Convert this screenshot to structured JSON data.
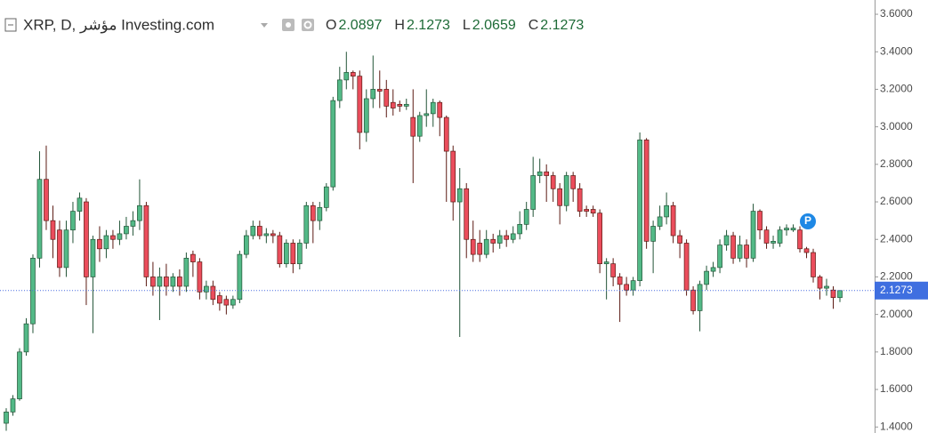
{
  "chart_data": {
    "type": "candlestick",
    "title": "XRP, D, مؤشر Investing.com",
    "header": [
      {
        "label": "O",
        "value": "2.0897"
      },
      {
        "label": "H",
        "value": "2.1273"
      },
      {
        "label": "L",
        "value": "2.0659"
      },
      {
        "label": "C",
        "value": "2.1273"
      }
    ],
    "up_color": "#53b987",
    "down_color": "#eb4d5c",
    "open": [
      1.42,
      1.48,
      1.55,
      1.8,
      1.95,
      2.3,
      2.72,
      2.5,
      2.45,
      2.25,
      2.45,
      2.55,
      2.6,
      2.2,
      2.4,
      2.35,
      2.42,
      2.4,
      2.43,
      2.47,
      2.5,
      2.58,
      2.2,
      2.15,
      2.2,
      2.15,
      2.2,
      2.15,
      2.32,
      2.28,
      2.12,
      2.15,
      2.1,
      2.08,
      2.05,
      2.08,
      2.32,
      2.42,
      2.47,
      2.42,
      2.43,
      2.42,
      2.27,
      2.38,
      2.27,
      2.38,
      2.58,
      2.5,
      2.57,
      2.68,
      3.14,
      3.25,
      3.29,
      3.27,
      2.97,
      3.15,
      3.2,
      3.2,
      3.13,
      3.12,
      3.11,
      3.05,
      2.95,
      3.06,
      3.07,
      3.13,
      3.05,
      2.87,
      2.6,
      2.67,
      2.4,
      2.38,
      2.32,
      2.4,
      2.38,
      2.42,
      2.4,
      2.43,
      2.48,
      2.56,
      2.74,
      2.76,
      2.74,
      2.67,
      2.58,
      2.74,
      2.67,
      2.56,
      2.56,
      2.54,
      2.27,
      2.27,
      2.2,
      2.16,
      2.13,
      2.18,
      2.93,
      2.39,
      2.47,
      2.52,
      2.58,
      2.42,
      2.38,
      2.13,
      2.02,
      2.16,
      2.23,
      2.25,
      2.37,
      2.42,
      2.3,
      2.37,
      2.3,
      2.55,
      2.45,
      2.38,
      2.38,
      2.45,
      2.45,
      2.45,
      2.35,
      2.33,
      2.2,
      2.14,
      2.13,
      2.0897
    ],
    "high": [
      1.5,
      1.57,
      1.82,
      1.98,
      2.32,
      2.87,
      2.9,
      2.58,
      2.5,
      2.5,
      2.6,
      2.65,
      2.62,
      2.42,
      2.47,
      2.45,
      2.45,
      2.5,
      2.52,
      2.55,
      2.72,
      2.6,
      2.28,
      2.25,
      2.27,
      2.22,
      2.24,
      2.33,
      2.34,
      2.3,
      2.18,
      2.18,
      2.12,
      2.1,
      2.1,
      2.34,
      2.45,
      2.5,
      2.5,
      2.46,
      2.45,
      2.44,
      2.4,
      2.4,
      2.4,
      2.6,
      2.6,
      2.6,
      2.7,
      3.16,
      3.32,
      3.4,
      3.3,
      3.3,
      3.2,
      3.38,
      3.3,
      3.25,
      3.2,
      3.14,
      3.15,
      3.2,
      3.08,
      3.2,
      3.15,
      3.14,
      3.06,
      2.9,
      2.78,
      2.7,
      2.5,
      2.45,
      2.45,
      2.43,
      2.45,
      2.45,
      2.47,
      2.55,
      2.6,
      2.84,
      2.83,
      2.8,
      2.76,
      2.7,
      2.76,
      2.76,
      2.7,
      2.58,
      2.58,
      2.56,
      2.3,
      2.3,
      2.22,
      2.2,
      2.2,
      2.97,
      2.94,
      2.5,
      2.58,
      2.65,
      2.6,
      2.45,
      2.4,
      2.15,
      2.18,
      2.26,
      2.28,
      2.4,
      2.45,
      2.44,
      2.42,
      2.4,
      2.59,
      2.56,
      2.47,
      2.42,
      2.47,
      2.48,
      2.48,
      2.47,
      2.36,
      2.35,
      2.21,
      2.19,
      2.15,
      2.1273
    ],
    "low": [
      1.38,
      1.46,
      1.54,
      1.78,
      1.9,
      2.25,
      2.45,
      2.3,
      2.2,
      2.2,
      2.38,
      2.5,
      2.05,
      1.9,
      2.28,
      2.3,
      2.35,
      2.37,
      2.4,
      2.42,
      2.45,
      2.15,
      2.1,
      1.97,
      2.1,
      2.12,
      2.1,
      2.12,
      2.2,
      2.08,
      2.08,
      2.05,
      2.02,
      2.0,
      2.03,
      2.06,
      2.3,
      2.4,
      2.4,
      2.38,
      2.38,
      2.25,
      2.25,
      2.22,
      2.24,
      2.35,
      2.38,
      2.45,
      2.55,
      2.66,
      3.1,
      3.2,
      3.2,
      2.88,
      2.92,
      3.1,
      3.1,
      3.05,
      3.06,
      3.08,
      3.09,
      2.7,
      2.92,
      3.0,
      3.0,
      2.95,
      2.6,
      2.5,
      1.88,
      2.3,
      2.28,
      2.28,
      2.3,
      2.33,
      2.35,
      2.36,
      2.38,
      2.4,
      2.45,
      2.52,
      2.7,
      2.6,
      2.6,
      2.48,
      2.55,
      2.6,
      2.52,
      2.52,
      2.52,
      2.22,
      2.08,
      2.15,
      1.96,
      2.1,
      2.1,
      2.15,
      2.35,
      2.22,
      2.45,
      2.48,
      2.38,
      2.3,
      2.1,
      2.0,
      1.91,
      2.13,
      2.2,
      2.22,
      2.34,
      2.27,
      2.28,
      2.25,
      2.28,
      2.4,
      2.35,
      2.35,
      2.36,
      2.42,
      2.44,
      2.33,
      2.3,
      2.17,
      2.08,
      2.1,
      2.03,
      2.0659
    ],
    "close": [
      1.48,
      1.55,
      1.8,
      1.95,
      2.3,
      2.72,
      2.5,
      2.4,
      2.25,
      2.45,
      2.55,
      2.62,
      2.2,
      2.4,
      2.35,
      2.42,
      2.4,
      2.43,
      2.47,
      2.5,
      2.58,
      2.2,
      2.15,
      2.2,
      2.15,
      2.2,
      2.15,
      2.3,
      2.28,
      2.12,
      2.15,
      2.08,
      2.06,
      2.05,
      2.08,
      2.32,
      2.42,
      2.47,
      2.42,
      2.43,
      2.42,
      2.27,
      2.38,
      2.27,
      2.38,
      2.58,
      2.5,
      2.57,
      2.68,
      3.14,
      3.25,
      3.29,
      3.27,
      2.97,
      3.15,
      3.2,
      3.19,
      3.11,
      3.1,
      3.11,
      3.12,
      2.95,
      3.06,
      3.07,
      3.13,
      3.05,
      2.87,
      2.6,
      2.67,
      2.4,
      2.32,
      2.32,
      2.4,
      2.38,
      2.42,
      2.4,
      2.43,
      2.48,
      2.56,
      2.74,
      2.76,
      2.74,
      2.67,
      2.58,
      2.74,
      2.67,
      2.55,
      2.55,
      2.54,
      2.27,
      2.28,
      2.2,
      2.16,
      2.13,
      2.18,
      2.93,
      2.39,
      2.47,
      2.52,
      2.58,
      2.42,
      2.38,
      2.13,
      2.02,
      2.16,
      2.23,
      2.25,
      2.37,
      2.42,
      2.3,
      2.37,
      2.3,
      2.55,
      2.45,
      2.38,
      2.39,
      2.45,
      2.46,
      2.46,
      2.35,
      2.33,
      2.2,
      2.14,
      2.15,
      2.09,
      2.1273
    ],
    "ylim": [
      1.368,
      3.676
    ],
    "yticks": [
      {
        "value": 1.4,
        "label": "1.4000"
      },
      {
        "value": 1.6,
        "label": "1.6000"
      },
      {
        "value": 1.8,
        "label": "1.8000"
      },
      {
        "value": 2.0,
        "label": "2.0000"
      },
      {
        "value": 2.2,
        "label": "2.2000"
      },
      {
        "value": 2.4,
        "label": "2.4000"
      },
      {
        "value": 2.6,
        "label": "2.6000"
      },
      {
        "value": 2.8,
        "label": "2.8000"
      },
      {
        "value": 3.0,
        "label": "3.0000"
      },
      {
        "value": 3.2,
        "label": "3.2000"
      },
      {
        "value": 3.4,
        "label": "3.4000"
      },
      {
        "value": 3.6,
        "label": "3.6000"
      }
    ],
    "last_price": {
      "value": 2.1273,
      "label": "2.1273"
    },
    "marker_label": "P"
  }
}
